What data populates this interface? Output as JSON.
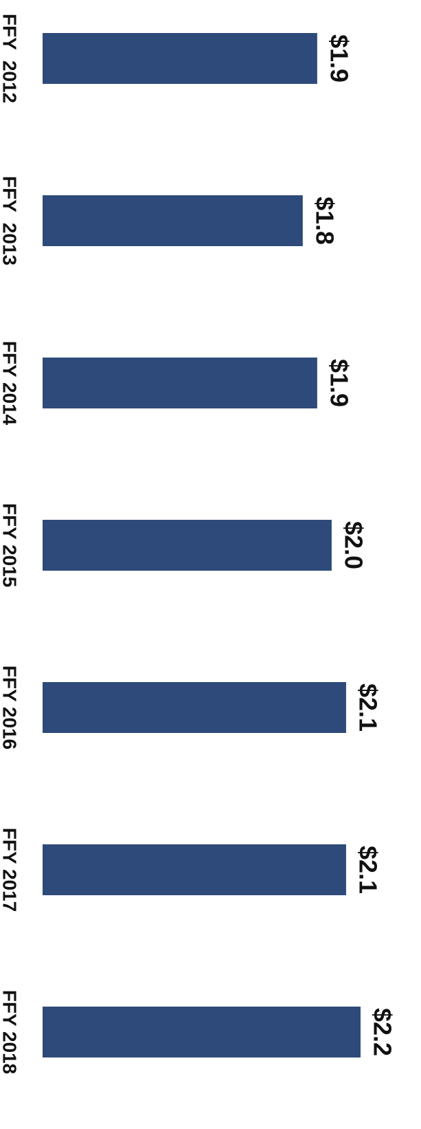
{
  "chart_data": {
    "type": "bar",
    "orientation": "horizontal",
    "categories": [
      "FFY  2012",
      "FFY  2013",
      "FFY 2014",
      "FFY 2015",
      "FFY 2016",
      "FFY 2017",
      "FFY 2018"
    ],
    "values": [
      1.9,
      1.8,
      1.9,
      2.0,
      2.1,
      2.1,
      2.2
    ],
    "data_labels": [
      "$1.9",
      "$1.8",
      "$1.9",
      "$2.0",
      "$2.1",
      "$2.1",
      "$2.2"
    ],
    "title": "",
    "xlabel": "",
    "ylabel": "",
    "xlim": [
      0,
      2.2
    ],
    "grid": false,
    "legend": false,
    "colors": {
      "bar": "#2e4a7a"
    }
  }
}
